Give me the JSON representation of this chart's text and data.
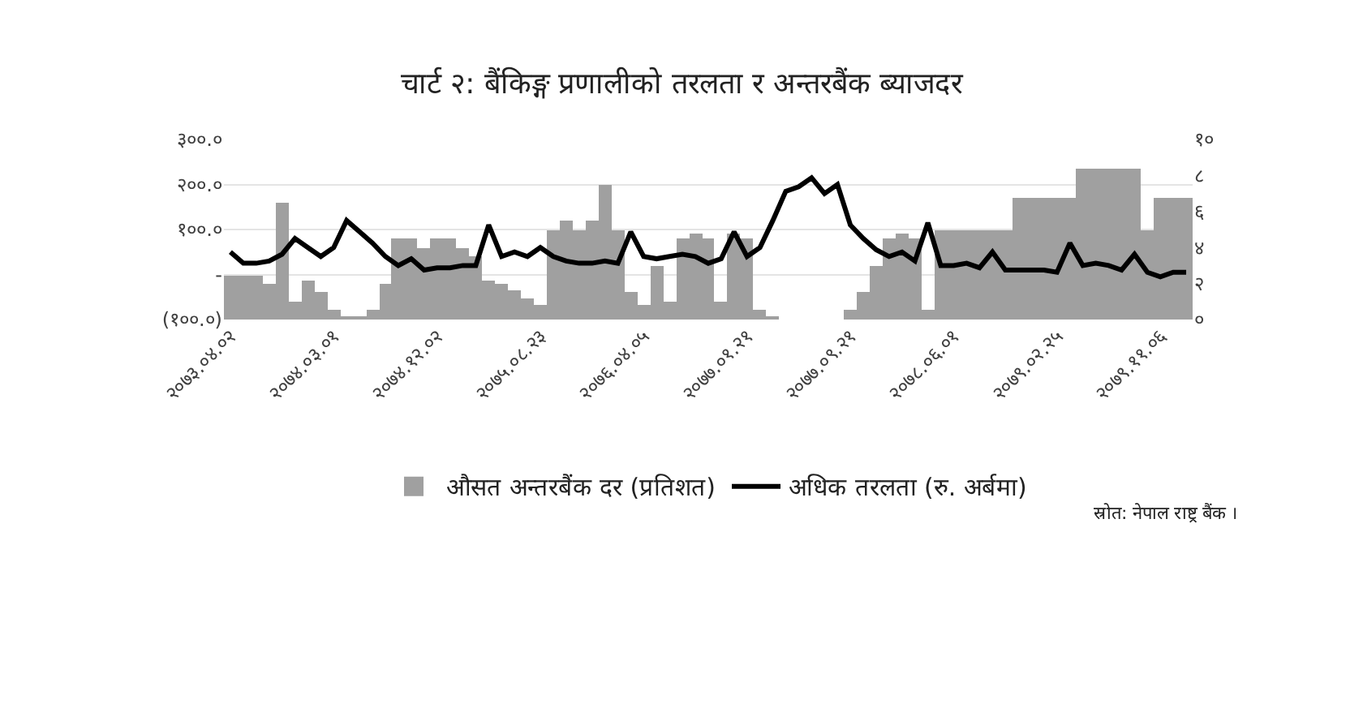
{
  "chart_data": {
    "type": "bar",
    "title": "चार्ट २: बैंकिङ्ग प्रणालीको तरलता र अन्तरबैंक ब्याजदर",
    "categories": [
      "२०७३.०४.०२",
      null,
      null,
      null,
      null,
      null,
      null,
      null,
      "२०७४.०३.०१",
      null,
      null,
      null,
      null,
      null,
      null,
      null,
      "२०७४.१२.०२",
      null,
      null,
      null,
      null,
      null,
      null,
      null,
      "२०७५.०८.२३",
      null,
      null,
      null,
      null,
      null,
      null,
      null,
      "२०७६.०४.०५",
      null,
      null,
      null,
      null,
      null,
      null,
      null,
      "२०७७.०१.२१",
      null,
      null,
      null,
      null,
      null,
      null,
      null,
      "२०७७.०९.२१",
      null,
      null,
      null,
      null,
      null,
      null,
      null,
      "२०७८.०६.०१",
      null,
      null,
      null,
      null,
      null,
      null,
      null,
      "२०७९.०२.२५",
      null,
      null,
      null,
      null,
      null,
      null,
      null,
      "२०७९.११.०६",
      null,
      null
    ],
    "series": [
      {
        "name": "औसत अन्तरबैंक दर (प्रतिशत)",
        "axis": "y2",
        "color": "#a0a0a0",
        "values": [
          2.4,
          2.4,
          2.4,
          2.0,
          6.5,
          1.0,
          2.2,
          1.5,
          0.5,
          0.2,
          0.1,
          0.5,
          2.0,
          4.5,
          4.5,
          4.0,
          4.5,
          4.5,
          4.0,
          3.5,
          2.2,
          2.0,
          1.6,
          1.2,
          0.8,
          5.0,
          5.5,
          5.0,
          5.5,
          7.5,
          5.0,
          1.5,
          0.8,
          3.0,
          1.0,
          4.5,
          4.8,
          4.5,
          1.0,
          4.8,
          4.5,
          0.5,
          0.1,
          0.0,
          0.0,
          0.0,
          0.0,
          0.0,
          0.5,
          1.5,
          3.0,
          4.5,
          4.8,
          4.5,
          0.5,
          5.0,
          5.0,
          5.0,
          5.0,
          5.0,
          5.0,
          6.8,
          6.8,
          6.8,
          6.8,
          6.8,
          8.4,
          8.4,
          8.4,
          8.4,
          8.4,
          5.0,
          6.8,
          6.8,
          6.8
        ]
      },
      {
        "name": "अधिक तरलता (रु. अर्बमा)",
        "type": "line",
        "color": "#000000",
        "values": [
          50,
          25,
          25,
          30,
          45,
          80,
          60,
          40,
          60,
          120,
          95,
          70,
          40,
          20,
          35,
          10,
          15,
          15,
          20,
          20,
          110,
          40,
          50,
          40,
          60,
          40,
          30,
          25,
          25,
          30,
          25,
          95,
          40,
          35,
          40,
          45,
          40,
          25,
          35,
          95,
          40,
          60,
          120,
          185,
          195,
          215,
          180,
          200,
          110,
          80,
          55,
          40,
          50,
          30,
          115,
          20,
          20,
          25,
          15,
          50,
          10,
          10,
          10,
          10,
          5,
          70,
          20,
          25,
          20,
          10,
          45,
          5,
          -5,
          5,
          5
        ]
      }
    ],
    "ylim": [
      -100,
      300
    ],
    "yticks": [
      {
        "value": -100,
        "label": "(१००.०)"
      },
      {
        "value": 0,
        "label": "-"
      },
      {
        "value": 100,
        "label": "१००.०"
      },
      {
        "value": 200,
        "label": "२००.०"
      },
      {
        "value": 300,
        "label": "३००.०"
      }
    ],
    "y2lim": [
      0,
      10
    ],
    "y2ticks": [
      {
        "value": 0,
        "label": "०"
      },
      {
        "value": 2,
        "label": "२"
      },
      {
        "value": 4,
        "label": "४"
      },
      {
        "value": 6,
        "label": "६"
      },
      {
        "value": 8,
        "label": "८"
      },
      {
        "value": 10,
        "label": "१०"
      }
    ],
    "grid": "y",
    "legend": "bottom",
    "annotations": [
      "स्रोत: नेपाल राष्ट्र बैंक ।"
    ]
  }
}
